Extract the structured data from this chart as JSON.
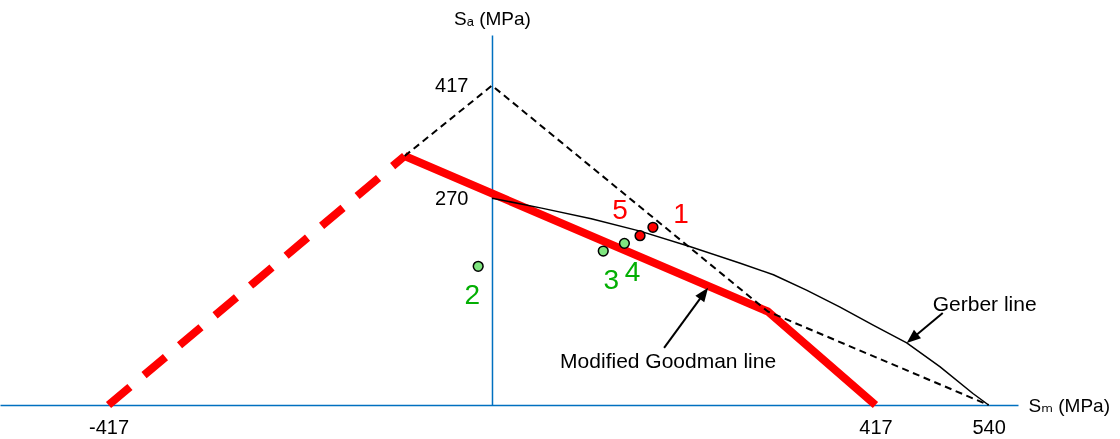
{
  "chart_data": {
    "type": "line",
    "xlabel": "Sₘ (MPa)",
    "ylabel": "Sₐ (MPa)",
    "xlim": [
      -535,
      572
    ],
    "ylim": [
      0,
      483
    ],
    "xticks": [
      -417,
      417,
      540
    ],
    "yticks": [
      270,
      417
    ],
    "series": [
      {
        "color": "#ff0000",
        "x": [
          -95,
          300,
          417
        ],
        "values": [
          325,
          122,
          0
        ]
      },
      {
        "color": "#ff0000",
        "line_style": "dashed",
        "x": [
          -417,
          -95
        ],
        "values": [
          0,
          325
        ]
      },
      {
        "color": "#000000",
        "line_style": "dashed",
        "x": [
          -95,
          0,
          300,
          540
        ],
        "values": [
          325,
          417,
          122,
          0
        ]
      },
      {
        "color": "#000000",
        "x": [
          0,
          54,
          108,
          161,
          215,
          270,
          306,
          342,
          378,
          415,
          451,
          487,
          523,
          540
        ],
        "values": [
          270,
          257,
          243,
          227,
          207,
          185,
          170,
          150,
          128,
          104,
          81,
          50,
          15,
          0
        ]
      },
      {
        "type": "scatter",
        "name": "1",
        "marker": "circle",
        "color": "#ff0000",
        "x": [
          175
        ],
        "values": [
          232
        ]
      },
      {
        "type": "scatter",
        "name": "2",
        "marker": "circle",
        "color": "#7fe57f",
        "x": [
          -15
        ],
        "values": [
          181
        ]
      },
      {
        "type": "scatter",
        "name": "3",
        "marker": "circle",
        "color": "#7fe57f",
        "x": [
          121
        ],
        "values": [
          201
        ]
      },
      {
        "type": "scatter",
        "name": "4",
        "marker": "circle",
        "color": "#7fe57f",
        "x": [
          144
        ],
        "values": [
          211
        ]
      },
      {
        "type": "scatter",
        "name": "5",
        "marker": "circle",
        "color": "#ff0000",
        "x": [
          161
        ],
        "values": [
          221
        ]
      }
    ],
    "annotations": [
      {
        "text": "Modified Goodman line",
        "x": 235,
        "y": 153
      },
      {
        "text": "Gerber line",
        "x": 451,
        "y": 81
      }
    ]
  }
}
